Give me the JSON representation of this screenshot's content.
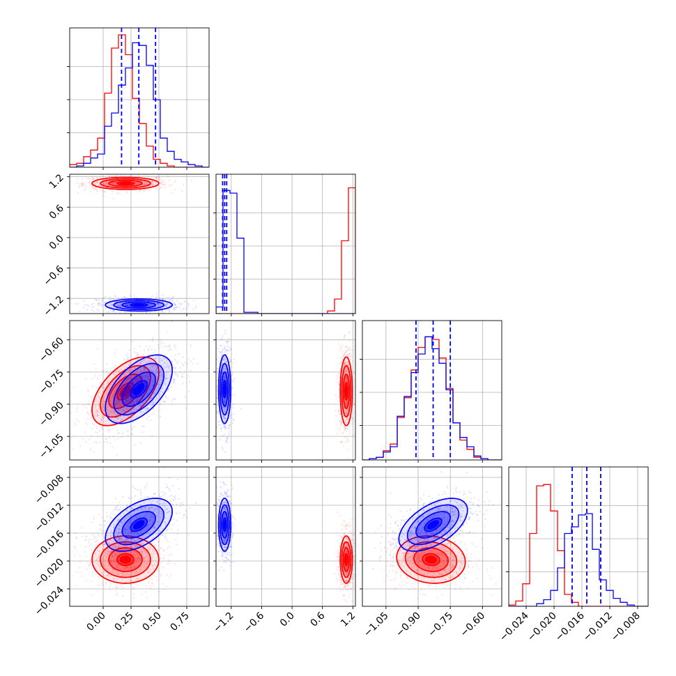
{
  "colors": {
    "series_a": "#ff0000",
    "series_b": "#0000ff",
    "grid": "#b0b0b0",
    "axis": "#000000"
  },
  "chart_data": {
    "type": "corner",
    "grid": true,
    "parameters": [
      {
        "range": [
          -0.3,
          0.95
        ],
        "ticks": [
          "0.00",
          "0.25",
          "0.50",
          "0.75"
        ],
        "tick_values": [
          0,
          0.25,
          0.5,
          0.75
        ]
      },
      {
        "range": [
          -1.5,
          1.25
        ],
        "ticks": [
          "−1.2",
          "−0.6",
          "0.0",
          "0.6",
          "1.2"
        ],
        "tick_values": [
          -1.2,
          -0.6,
          0,
          0.6,
          1.2
        ]
      },
      {
        "range": [
          -1.16,
          -0.51
        ],
        "ticks": [
          "−1.05",
          "−0.90",
          "−0.75",
          "−0.60"
        ],
        "tick_values": [
          -1.05,
          -0.9,
          -0.75,
          -0.6
        ]
      },
      {
        "range": [
          -0.0265,
          -0.0065
        ],
        "ticks": [
          "−0.024",
          "−0.020",
          "−0.016",
          "−0.012",
          "−0.008"
        ],
        "tick_values": [
          -0.024,
          -0.02,
          -0.016,
          -0.012,
          -0.008
        ]
      }
    ],
    "series": [
      {
        "color": "red",
        "mean": [
          0.2,
          1.07,
          -0.84,
          -0.0198
        ],
        "sd": [
          0.15,
          0.06,
          0.08,
          0.0017
        ],
        "corr": {
          "0-2": 0.55,
          "2-3": -0.1,
          "0-3": 0.0
        }
      },
      {
        "color": "blue",
        "mean": [
          0.32,
          -1.33,
          -0.83,
          -0.0148
        ],
        "sd": [
          0.15,
          0.06,
          0.08,
          0.0019
        ],
        "corr": {
          "0-2": 0.55,
          "2-3": 0.55,
          "0-3": 0.5
        }
      }
    ],
    "quantile_lines": [
      [
        0.165,
        0.32,
        0.47
      ],
      [
        -1.37,
        -1.33,
        -1.29
      ],
      [
        -0.91,
        -0.83,
        -0.75
      ],
      [
        -0.0174,
        -0.0153,
        -0.0133
      ]
    ],
    "histograms": [
      {
        "edges_start": -0.3,
        "bin_width": 0.0625,
        "red": [
          0.02,
          0.03,
          0.08,
          0.13,
          0.22,
          0.56,
          0.9,
          1.0,
          0.85,
          0.52,
          0.33,
          0.16,
          0.06,
          0.03,
          0.01,
          0.0,
          0.0,
          0.0,
          0.0,
          0.0
        ],
        "blue": [
          0.0,
          0.01,
          0.03,
          0.07,
          0.1,
          0.31,
          0.41,
          0.62,
          0.75,
          0.94,
          0.92,
          0.77,
          0.51,
          0.22,
          0.12,
          0.06,
          0.04,
          0.02,
          0.01,
          0.0
        ]
      },
      {
        "edges_start": -1.5,
        "bin_width": 0.1375,
        "red": [
          0,
          0,
          0,
          0,
          0,
          0,
          0,
          0,
          0,
          0,
          0,
          0,
          0,
          0,
          0,
          0,
          0.02,
          0.11,
          0.55,
          0.95
        ],
        "blue": [
          0.05,
          0.93,
          0.91,
          0.57,
          0.01,
          0.01,
          0,
          0,
          0,
          0,
          0,
          0,
          0,
          0,
          0,
          0,
          0,
          0,
          0,
          0
        ]
      },
      {
        "edges_start": -1.16,
        "bin_width": 0.0325,
        "red": [
          0.0,
          0.01,
          0.02,
          0.07,
          0.12,
          0.32,
          0.47,
          0.68,
          0.85,
          0.93,
          0.91,
          0.77,
          0.54,
          0.28,
          0.15,
          0.08,
          0.02,
          0.01,
          0.0,
          0.0
        ],
        "blue": [
          0.0,
          0.01,
          0.02,
          0.06,
          0.1,
          0.33,
          0.48,
          0.66,
          0.8,
          0.93,
          0.84,
          0.73,
          0.53,
          0.28,
          0.17,
          0.1,
          0.03,
          0.01,
          0.0,
          0.0
        ]
      },
      {
        "edges_start": -0.0265,
        "bin_width": 0.001,
        "red": [
          0.01,
          0.04,
          0.17,
          0.55,
          0.91,
          0.92,
          0.72,
          0.42,
          0.09,
          0.03,
          0.0,
          0.0,
          0.0,
          0.0,
          0.0,
          0.0,
          0.0,
          0.0,
          0.0,
          0.0
        ],
        "blue": [
          0.0,
          0.0,
          0.0,
          0.0,
          0.02,
          0.05,
          0.12,
          0.29,
          0.55,
          0.6,
          0.69,
          0.7,
          0.43,
          0.2,
          0.12,
          0.06,
          0.03,
          0.01,
          0.0,
          0.0
        ]
      }
    ]
  }
}
